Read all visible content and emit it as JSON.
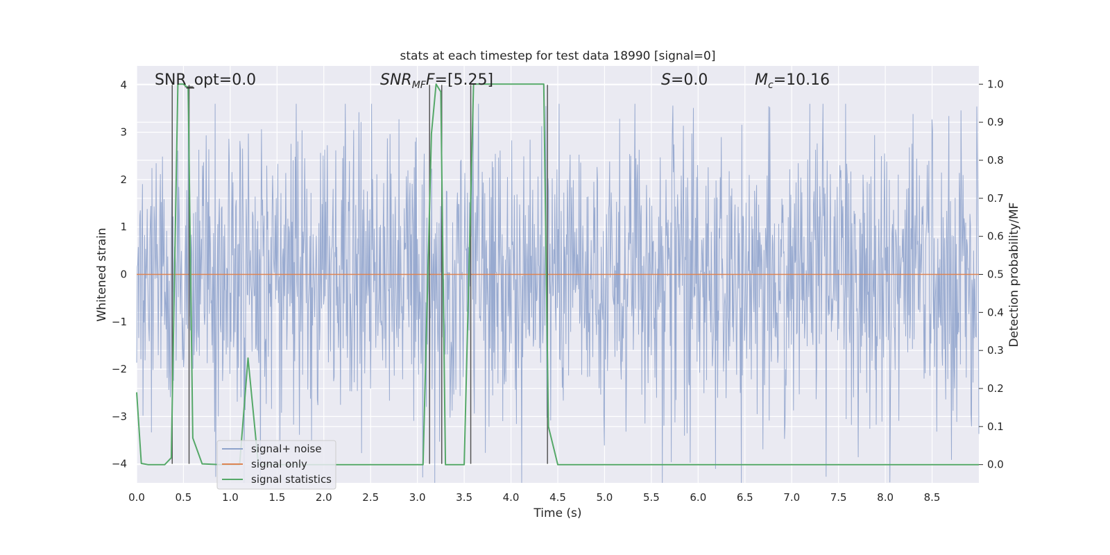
{
  "chart_data": {
    "type": "line",
    "title": "stats at each timestep for test data 18990 [signal=0]",
    "xlabel": "Time (s)",
    "ylabel": "Whitened strain",
    "ylabel_right": "Detection probability/MF",
    "xlim": [
      0,
      9.0
    ],
    "ylim": [
      -4.4,
      4.4
    ],
    "ylim_right": [
      -0.048,
      1.048
    ],
    "x_ticks": [
      "0.0",
      "0.5",
      "1.0",
      "1.5",
      "2.0",
      "2.5",
      "3.0",
      "3.5",
      "4.0",
      "4.5",
      "5.0",
      "5.5",
      "6.0",
      "6.5",
      "7.0",
      "7.5",
      "8.0",
      "8.5"
    ],
    "y_ticks": [
      "4",
      "3",
      "2",
      "1",
      "0",
      "−1",
      "−2",
      "−3",
      "−4"
    ],
    "y_ticks_right": [
      "1.0",
      "0.9",
      "0.8",
      "0.7",
      "0.6",
      "0.5",
      "0.4",
      "0.3",
      "0.2",
      "0.1",
      "0.0"
    ],
    "grid": true,
    "legend_position": "lower-left",
    "annotations": [
      {
        "text": "SNR_opt=0.0",
        "italic": false
      },
      {
        "text": "SNR",
        "sub": "MF",
        "rest": "=[5.25]",
        "italic": true
      },
      {
        "text": "S",
        "rest": "=0.0",
        "italic": true
      },
      {
        "text": "M",
        "sub": "c",
        "rest": "=10.16",
        "italic": true
      }
    ],
    "series": [
      {
        "name": "signal+ noise",
        "color": "#8fa3cc",
        "axis": "left",
        "typical_amplitude": 1.5,
        "peak_range": [
          -4.4,
          3.6
        ]
      },
      {
        "name": "signal only",
        "color": "#dd8452",
        "axis": "left",
        "y": [
          [
            0,
            0
          ],
          [
            9.0,
            0
          ]
        ]
      },
      {
        "name": "signal statistics",
        "color": "#55a868",
        "axis": "right",
        "points": [
          [
            0.0,
            0.19
          ],
          [
            0.05,
            0.003
          ],
          [
            0.12,
            0.0
          ],
          [
            0.3,
            0.0
          ],
          [
            0.37,
            0.018
          ],
          [
            0.44,
            1.0
          ],
          [
            0.5,
            1.0
          ],
          [
            0.55,
            0.99
          ],
          [
            0.6,
            0.07
          ],
          [
            0.7,
            0.002
          ],
          [
            0.9,
            0.0
          ],
          [
            1.1,
            0.0
          ],
          [
            1.19,
            0.28
          ],
          [
            1.3,
            0.0
          ],
          [
            3.06,
            0.0
          ],
          [
            3.15,
            0.87
          ],
          [
            3.2,
            1.0
          ],
          [
            3.25,
            0.98
          ],
          [
            3.3,
            0.0
          ],
          [
            3.4,
            0.0
          ],
          [
            3.5,
            0.0
          ],
          [
            3.6,
            1.0
          ],
          [
            4.35,
            1.0
          ],
          [
            4.4,
            0.1
          ],
          [
            4.5,
            0.0
          ],
          [
            9.0,
            0.0
          ]
        ]
      },
      {
        "name": "",
        "color": "#555555",
        "axis": "left",
        "role": "detection-boundary-lines",
        "x": [
          0.38,
          0.56,
          3.13,
          3.26,
          3.57,
          4.39
        ]
      }
    ]
  },
  "legend": {
    "items": [
      {
        "label": "signal+ noise",
        "color": "#8fa3cc"
      },
      {
        "label": "signal only",
        "color": "#dd8452"
      },
      {
        "label": "signal statistics",
        "color": "#55a868"
      }
    ]
  }
}
